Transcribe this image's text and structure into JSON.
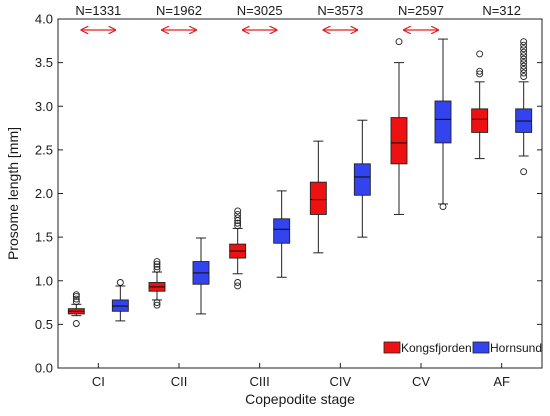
{
  "chart_data": {
    "type": "box",
    "xlabel": "Copepodite stage",
    "ylabel": "Prosome length [mm]",
    "ylim": [
      0,
      4.0
    ],
    "yticks": [
      "0.0",
      "0.5",
      "1.0",
      "1.5",
      "2.0",
      "2.5",
      "3.0",
      "3.5",
      "4.0"
    ],
    "categories": [
      "CI",
      "CII",
      "CIII",
      "CIV",
      "CV",
      "AF"
    ],
    "n_labels": [
      "N=1331",
      "N=1962",
      "N=3025",
      "N=3573",
      "N=2597",
      "N=312"
    ],
    "arrows_shown": [
      true,
      true,
      true,
      true,
      true,
      false
    ],
    "legend_position": "bottom-right",
    "grid": false,
    "series": [
      {
        "name": "Kongsfjorden",
        "color": "#ee1111",
        "boxes": [
          {
            "whisker_low": 0.6,
            "q1": 0.62,
            "median": 0.65,
            "q3": 0.68,
            "whisker_high": 0.73,
            "outliers": [
              0.51,
              0.76,
              0.79,
              0.82,
              0.84
            ]
          },
          {
            "whisker_low": 0.78,
            "q1": 0.88,
            "median": 0.93,
            "q3": 0.98,
            "whisker_high": 1.1,
            "outliers": [
              0.72,
              0.75,
              1.13,
              1.16,
              1.19,
              1.22
            ]
          },
          {
            "whisker_low": 1.08,
            "q1": 1.26,
            "median": 1.34,
            "q3": 1.42,
            "whisker_high": 1.6,
            "outliers": [
              0.94,
              0.98,
              1.63,
              1.66,
              1.69,
              1.72,
              1.76,
              1.8
            ]
          },
          {
            "whisker_low": 1.32,
            "q1": 1.76,
            "median": 1.93,
            "q3": 2.13,
            "whisker_high": 2.6,
            "outliers": []
          },
          {
            "whisker_low": 1.76,
            "q1": 2.34,
            "median": 2.58,
            "q3": 2.87,
            "whisker_high": 3.5,
            "outliers": [
              3.74
            ]
          },
          {
            "whisker_low": 2.4,
            "q1": 2.7,
            "median": 2.85,
            "q3": 2.97,
            "whisker_high": 3.28,
            "outliers": [
              3.37,
              3.4,
              3.6
            ]
          }
        ]
      },
      {
        "name": "Hornsund",
        "color": "#3344ee",
        "boxes": [
          {
            "whisker_low": 0.54,
            "q1": 0.65,
            "median": 0.71,
            "q3": 0.78,
            "whisker_high": 0.94,
            "outliers": [
              0.98
            ]
          },
          {
            "whisker_low": 0.62,
            "q1": 0.96,
            "median": 1.09,
            "q3": 1.22,
            "whisker_high": 1.49,
            "outliers": []
          },
          {
            "whisker_low": 1.04,
            "q1": 1.43,
            "median": 1.59,
            "q3": 1.71,
            "whisker_high": 2.03,
            "outliers": []
          },
          {
            "whisker_low": 1.5,
            "q1": 1.98,
            "median": 2.19,
            "q3": 2.34,
            "whisker_high": 2.84,
            "outliers": []
          },
          {
            "whisker_low": 1.88,
            "q1": 2.58,
            "median": 2.85,
            "q3": 3.06,
            "whisker_high": 3.77,
            "outliers": [
              1.85
            ]
          },
          {
            "whisker_low": 2.43,
            "q1": 2.7,
            "median": 2.83,
            "q3": 2.97,
            "whisker_high": 3.28,
            "outliers": [
              2.25,
              3.34,
              3.38,
              3.42,
              3.46,
              3.5,
              3.54,
              3.58,
              3.62,
              3.66,
              3.7,
              3.74
            ]
          }
        ]
      }
    ]
  }
}
